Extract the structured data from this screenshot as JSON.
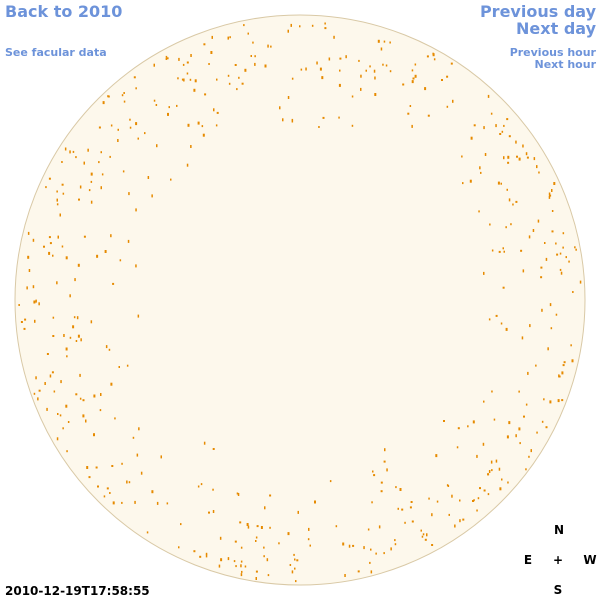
{
  "links": {
    "back": "Back to 2010",
    "facular": "See facular data",
    "previous_day": "Previous day",
    "next_day": "Next day",
    "previous_hour": "Previous hour",
    "next_hour": "Next hour"
  },
  "timestamp": "2010-12-19T17:58:55",
  "compass": {
    "north": "N",
    "east": "E",
    "center": "+",
    "west": "W",
    "south": "S"
  }
}
